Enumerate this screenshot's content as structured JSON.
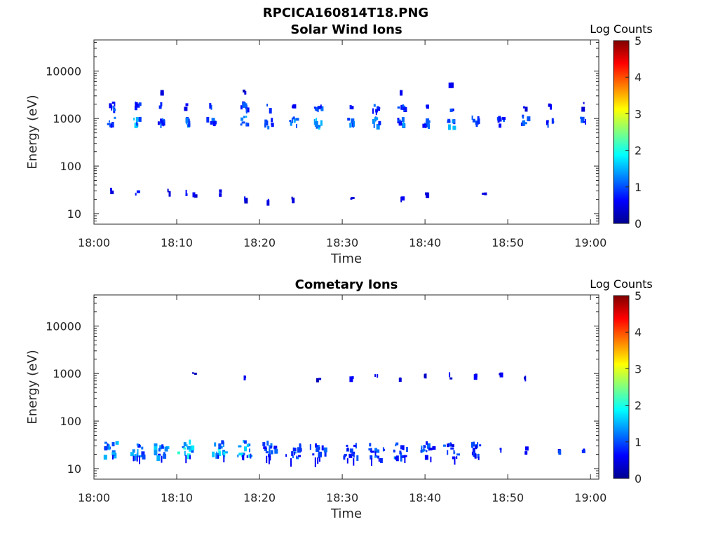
{
  "figure_title": "RPCICA160814T18.PNG",
  "chart_data": [
    {
      "type": "heatmap",
      "title": "Solar Wind Ions",
      "xlabel": "Time",
      "ylabel": "Energy (eV)",
      "yscale": "log",
      "ylim": [
        6,
        45000
      ],
      "xlim_minutes": [
        0,
        61
      ],
      "x_ticks": [
        "18:00",
        "18:10",
        "18:20",
        "18:30",
        "18:40",
        "18:50",
        "19:00"
      ],
      "y_ticks": [
        "10",
        "100",
        "1000",
        "10000"
      ],
      "colorbar": {
        "label": "Log Counts",
        "range": [
          0,
          5
        ],
        "ticks": [
          "0",
          "1",
          "2",
          "3",
          "4",
          "5"
        ],
        "colormap": "jet"
      },
      "clusters": [
        {
          "time": "18:02",
          "energy": 900,
          "level": 1.0
        },
        {
          "time": "18:02",
          "energy": 1900,
          "level": 0.9
        },
        {
          "time": "18:02",
          "energy": 31,
          "level": 0.6
        },
        {
          "time": "18:05",
          "energy": 950,
          "level": 1.3
        },
        {
          "time": "18:05",
          "energy": 1950,
          "level": 0.9
        },
        {
          "time": "18:05",
          "energy": 27,
          "level": 0.6
        },
        {
          "time": "18:08",
          "energy": 900,
          "level": 1.0
        },
        {
          "time": "18:08",
          "energy": 1950,
          "level": 0.8
        },
        {
          "time": "18:08",
          "energy": 3900,
          "level": 0.5
        },
        {
          "time": "18:09",
          "energy": 31,
          "level": 0.5
        },
        {
          "time": "18:11",
          "energy": 900,
          "level": 1.2
        },
        {
          "time": "18:11",
          "energy": 1950,
          "level": 0.8
        },
        {
          "time": "18:11",
          "energy": 28,
          "level": 0.6
        },
        {
          "time": "18:12",
          "energy": 28,
          "level": 0.5
        },
        {
          "time": "18:14",
          "energy": 950,
          "level": 1.1
        },
        {
          "time": "18:14",
          "energy": 1900,
          "level": 0.8
        },
        {
          "time": "18:15",
          "energy": 30,
          "level": 0.6
        },
        {
          "time": "18:18",
          "energy": 950,
          "level": 1.3
        },
        {
          "time": "18:18",
          "energy": 1950,
          "level": 0.9
        },
        {
          "time": "18:18",
          "energy": 3900,
          "level": 0.5
        },
        {
          "time": "18:18",
          "energy": 21,
          "level": 0.6
        },
        {
          "time": "18:21",
          "energy": 850,
          "level": 1.1
        },
        {
          "time": "18:21",
          "energy": 1800,
          "level": 0.8
        },
        {
          "time": "18:21",
          "energy": 21,
          "level": 0.6
        },
        {
          "time": "18:24",
          "energy": 900,
          "level": 1.2
        },
        {
          "time": "18:24",
          "energy": 1850,
          "level": 0.8
        },
        {
          "time": "18:24",
          "energy": 20,
          "level": 0.5
        },
        {
          "time": "18:27",
          "energy": 850,
          "level": 1.3
        },
        {
          "time": "18:27",
          "energy": 1850,
          "level": 0.9
        },
        {
          "time": "18:31",
          "energy": 850,
          "level": 1.2
        },
        {
          "time": "18:31",
          "energy": 1800,
          "level": 0.8
        },
        {
          "time": "18:31",
          "energy": 20,
          "level": 0.5
        },
        {
          "time": "18:34",
          "energy": 900,
          "level": 1.4
        },
        {
          "time": "18:34",
          "energy": 1800,
          "level": 0.9
        },
        {
          "time": "18:37",
          "energy": 900,
          "level": 1.2
        },
        {
          "time": "18:37",
          "energy": 1850,
          "level": 0.9
        },
        {
          "time": "18:37",
          "energy": 3600,
          "level": 0.5
        },
        {
          "time": "18:37",
          "energy": 26,
          "level": 0.6
        },
        {
          "time": "18:40",
          "energy": 900,
          "level": 1.1
        },
        {
          "time": "18:40",
          "energy": 2000,
          "level": 0.8
        },
        {
          "time": "18:40",
          "energy": 27,
          "level": 0.6
        },
        {
          "time": "18:43",
          "energy": 850,
          "level": 1.2
        },
        {
          "time": "18:43",
          "energy": 1850,
          "level": 0.8
        },
        {
          "time": "18:43",
          "energy": 6200,
          "level": 0.5
        },
        {
          "time": "18:46",
          "energy": 950,
          "level": 1.0
        },
        {
          "time": "18:47",
          "energy": 27,
          "level": 0.5
        },
        {
          "time": "18:49",
          "energy": 950,
          "level": 0.9
        },
        {
          "time": "18:52",
          "energy": 1000,
          "level": 1.0
        },
        {
          "time": "18:52",
          "energy": 1950,
          "level": 0.6
        },
        {
          "time": "18:55",
          "energy": 950,
          "level": 0.9
        },
        {
          "time": "18:55",
          "energy": 2000,
          "level": 0.5
        },
        {
          "time": "18:59",
          "energy": 950,
          "level": 0.9
        },
        {
          "time": "18:59",
          "energy": 2000,
          "level": 0.5
        }
      ]
    },
    {
      "type": "heatmap",
      "title": "Cometary Ions",
      "xlabel": "Time",
      "ylabel": "Energy (eV)",
      "yscale": "log",
      "ylim": [
        6,
        45000
      ],
      "xlim_minutes": [
        0,
        61
      ],
      "x_ticks": [
        "18:00",
        "18:10",
        "18:20",
        "18:30",
        "18:40",
        "18:50",
        "19:00"
      ],
      "y_ticks": [
        "10",
        "100",
        "1000",
        "10000"
      ],
      "colorbar": {
        "label": "Log Counts",
        "range": [
          0,
          5
        ],
        "ticks": [
          "0",
          "1",
          "2",
          "3",
          "4",
          "5"
        ],
        "colormap": "jet"
      },
      "clusters": [
        {
          "time": "18:02",
          "energy": 28,
          "level": 1.4
        },
        {
          "time": "18:05",
          "energy": 27,
          "level": 1.2
        },
        {
          "time": "18:08",
          "energy": 27,
          "level": 1.3
        },
        {
          "time": "18:11",
          "energy": 28,
          "level": 1.7
        },
        {
          "time": "18:12",
          "energy": 1000,
          "level": 0.5
        },
        {
          "time": "18:15",
          "energy": 28,
          "level": 1.5
        },
        {
          "time": "18:18",
          "energy": 28,
          "level": 1.4
        },
        {
          "time": "18:18",
          "energy": 950,
          "level": 0.5
        },
        {
          "time": "18:21",
          "energy": 27,
          "level": 1.0
        },
        {
          "time": "18:24",
          "energy": 24,
          "level": 1.0
        },
        {
          "time": "18:27",
          "energy": 25,
          "level": 0.9
        },
        {
          "time": "18:27",
          "energy": 900,
          "level": 0.5
        },
        {
          "time": "18:31",
          "energy": 24,
          "level": 0.9
        },
        {
          "time": "18:31",
          "energy": 880,
          "level": 0.5
        },
        {
          "time": "18:34",
          "energy": 24,
          "level": 1.0
        },
        {
          "time": "18:34",
          "energy": 880,
          "level": 0.5
        },
        {
          "time": "18:37",
          "energy": 26,
          "level": 1.1
        },
        {
          "time": "18:37",
          "energy": 880,
          "level": 0.5
        },
        {
          "time": "18:40",
          "energy": 26,
          "level": 1.0
        },
        {
          "time": "18:40",
          "energy": 950,
          "level": 0.5
        },
        {
          "time": "18:43",
          "energy": 26,
          "level": 0.9
        },
        {
          "time": "18:43",
          "energy": 930,
          "level": 0.5
        },
        {
          "time": "18:46",
          "energy": 26,
          "level": 0.9
        },
        {
          "time": "18:46",
          "energy": 1000,
          "level": 0.6
        },
        {
          "time": "18:49",
          "energy": 26,
          "level": 0.8
        },
        {
          "time": "18:49",
          "energy": 950,
          "level": 0.5
        },
        {
          "time": "18:52",
          "energy": 26,
          "level": 0.8
        },
        {
          "time": "18:52",
          "energy": 950,
          "level": 0.5
        },
        {
          "time": "18:56",
          "energy": 26,
          "level": 0.8
        },
        {
          "time": "18:59",
          "energy": 25,
          "level": 0.7
        }
      ]
    }
  ]
}
